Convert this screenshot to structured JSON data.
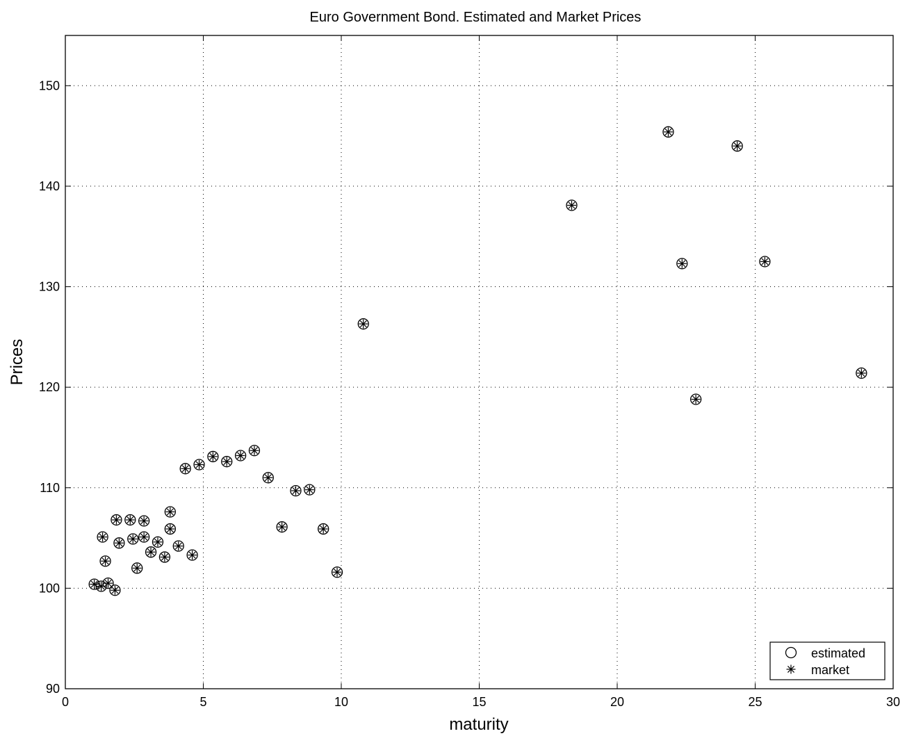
{
  "chart_data": {
    "type": "scatter",
    "title": "Euro Government Bond. Estimated and Market Prices",
    "xlabel": "maturity",
    "ylabel": "Prices",
    "xlim": [
      0,
      30
    ],
    "ylim": [
      90,
      155
    ],
    "xticks": [
      0,
      5,
      10,
      15,
      20,
      25,
      30
    ],
    "yticks": [
      90,
      100,
      110,
      120,
      130,
      140,
      150
    ],
    "xtick_labels": [
      "0",
      "5",
      "10",
      "15",
      "20",
      "25",
      "30"
    ],
    "ytick_labels": [
      "90",
      "100",
      "110",
      "120",
      "130",
      "140",
      "150"
    ],
    "grid": true,
    "legend_position": "bottom-right",
    "series": [
      {
        "name": "estimated",
        "marker": "circle",
        "points": [
          [
            1.05,
            100.4
          ],
          [
            1.3,
            100.2
          ],
          [
            1.35,
            105.1
          ],
          [
            1.45,
            102.7
          ],
          [
            1.55,
            100.5
          ],
          [
            1.8,
            99.8
          ],
          [
            1.85,
            106.8
          ],
          [
            1.95,
            104.5
          ],
          [
            2.35,
            106.8
          ],
          [
            2.45,
            104.9
          ],
          [
            2.6,
            102.0
          ],
          [
            2.85,
            106.7
          ],
          [
            2.85,
            105.1
          ],
          [
            3.1,
            103.6
          ],
          [
            3.35,
            104.6
          ],
          [
            3.6,
            103.1
          ],
          [
            3.8,
            107.6
          ],
          [
            3.8,
            105.9
          ],
          [
            4.1,
            104.2
          ],
          [
            4.35,
            111.9
          ],
          [
            4.6,
            103.3
          ],
          [
            4.85,
            112.3
          ],
          [
            5.35,
            113.1
          ],
          [
            5.85,
            112.6
          ],
          [
            6.35,
            113.2
          ],
          [
            6.85,
            113.7
          ],
          [
            7.35,
            111.0
          ],
          [
            7.85,
            106.1
          ],
          [
            8.35,
            109.7
          ],
          [
            8.85,
            109.8
          ],
          [
            9.35,
            105.9
          ],
          [
            9.85,
            101.6
          ],
          [
            10.8,
            126.3
          ],
          [
            18.35,
            138.1
          ],
          [
            21.85,
            145.4
          ],
          [
            22.35,
            132.3
          ],
          [
            22.85,
            118.8
          ],
          [
            24.35,
            144.0
          ],
          [
            25.35,
            132.5
          ],
          [
            28.85,
            121.4
          ]
        ]
      },
      {
        "name": "market",
        "marker": "asterisk",
        "points": [
          [
            1.05,
            100.4
          ],
          [
            1.3,
            100.2
          ],
          [
            1.35,
            105.1
          ],
          [
            1.45,
            102.7
          ],
          [
            1.55,
            100.5
          ],
          [
            1.8,
            99.8
          ],
          [
            1.85,
            106.8
          ],
          [
            1.95,
            104.5
          ],
          [
            2.35,
            106.8
          ],
          [
            2.45,
            104.9
          ],
          [
            2.6,
            102.0
          ],
          [
            2.85,
            106.7
          ],
          [
            2.85,
            105.1
          ],
          [
            3.1,
            103.6
          ],
          [
            3.35,
            104.6
          ],
          [
            3.6,
            103.1
          ],
          [
            3.8,
            107.6
          ],
          [
            3.8,
            105.9
          ],
          [
            4.1,
            104.2
          ],
          [
            4.35,
            111.9
          ],
          [
            4.6,
            103.3
          ],
          [
            4.85,
            112.3
          ],
          [
            5.35,
            113.1
          ],
          [
            5.85,
            112.6
          ],
          [
            6.35,
            113.2
          ],
          [
            6.85,
            113.7
          ],
          [
            7.35,
            111.0
          ],
          [
            7.85,
            106.1
          ],
          [
            8.35,
            109.7
          ],
          [
            8.85,
            109.8
          ],
          [
            9.35,
            105.9
          ],
          [
            9.85,
            101.6
          ],
          [
            10.8,
            126.3
          ],
          [
            18.35,
            138.1
          ],
          [
            21.85,
            145.4
          ],
          [
            22.35,
            132.3
          ],
          [
            22.85,
            118.8
          ],
          [
            24.35,
            144.0
          ],
          [
            25.35,
            132.5
          ],
          [
            28.85,
            121.4
          ]
        ]
      }
    ]
  }
}
